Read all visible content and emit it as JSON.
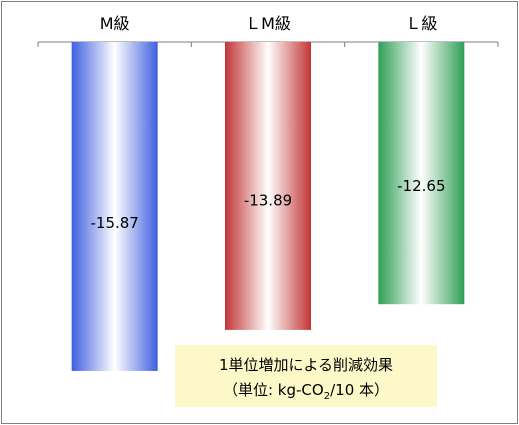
{
  "chart_data": {
    "type": "bar",
    "categories": [
      "M級",
      "ＬM級",
      "Ｌ級"
    ],
    "values": [
      -15.87,
      -13.89,
      -12.65
    ],
    "value_labels": [
      "-15.87",
      "-13.89",
      "-12.65"
    ],
    "ylim": [
      -16.5,
      0
    ],
    "grid": false,
    "x_axis_position": "top",
    "annotation": {
      "line1": "1単位増加による削減効果",
      "line2_prefix": "（単位: kg-CO",
      "line2_sub": "2",
      "line2_suffix": "/10 本）"
    },
    "colors": {
      "bar_fills": [
        "#3f5fe0",
        "#c23535",
        "#2f9e55"
      ],
      "bar_center": "#ffffff",
      "annotation_background": "#fdf8c8",
      "frame_border": "#7f7f7f",
      "axis_line": "#7f7f7f"
    }
  }
}
